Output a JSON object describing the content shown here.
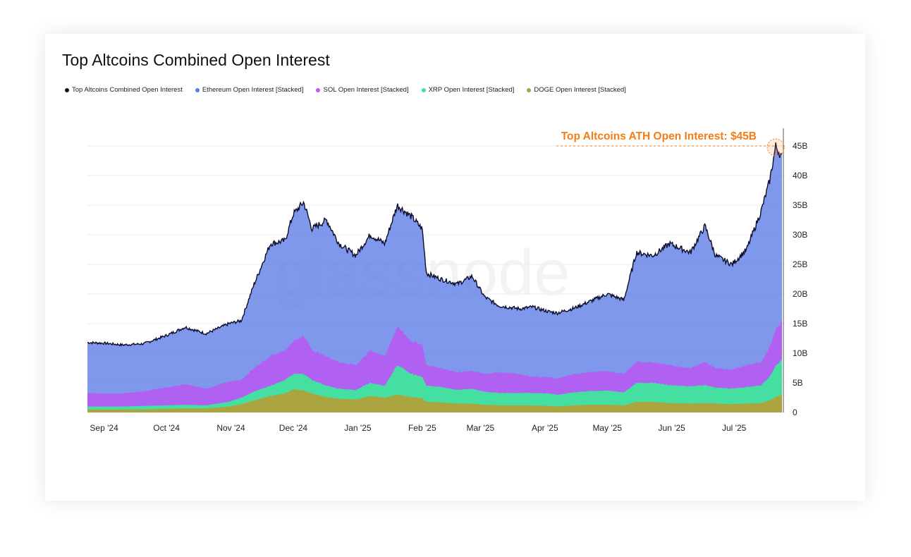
{
  "chart_data": {
    "type": "area",
    "title": "Top Altcoins Combined Open Interest",
    "watermark": "glassnode",
    "x_ticks": [
      "Sep '24",
      "Oct '24",
      "Nov '24",
      "Dec '24",
      "Jan '25",
      "Feb '25",
      "Mar '25",
      "Apr '25",
      "May '25",
      "Jun '25",
      "Jul '25"
    ],
    "y_ticks": [
      "0",
      "5B",
      "10B",
      "15B",
      "20B",
      "25B",
      "30B",
      "35B",
      "40B",
      "45B"
    ],
    "ylim": [
      0,
      45
    ],
    "y_unit": "B",
    "grid": true,
    "legend_position": "top-left",
    "x": [
      "2024-08-24",
      "2024-09-01",
      "2024-09-10",
      "2024-09-20",
      "2024-10-01",
      "2024-10-10",
      "2024-10-20",
      "2024-10-31",
      "2024-11-06",
      "2024-11-12",
      "2024-11-20",
      "2024-11-27",
      "2024-12-01",
      "2024-12-06",
      "2024-12-10",
      "2024-12-17",
      "2024-12-23",
      "2024-12-31",
      "2025-01-07",
      "2025-01-14",
      "2025-01-20",
      "2025-01-27",
      "2025-02-01",
      "2025-02-03",
      "2025-02-10",
      "2025-02-18",
      "2025-02-25",
      "2025-03-03",
      "2025-03-10",
      "2025-03-20",
      "2025-03-26",
      "2025-04-03",
      "2025-04-07",
      "2025-04-15",
      "2025-04-23",
      "2025-05-01",
      "2025-05-09",
      "2025-05-15",
      "2025-05-23",
      "2025-05-31",
      "2025-06-10",
      "2025-06-17",
      "2025-06-22",
      "2025-06-30",
      "2025-07-07",
      "2025-07-14",
      "2025-07-18",
      "2025-07-21",
      "2025-07-24"
    ],
    "series": [
      {
        "name": "Top Altcoins Combined Open Interest",
        "color": "#0b0e2a",
        "values": [
          11.8,
          11.7,
          11.4,
          11.6,
          13.0,
          14.4,
          13.3,
          15.0,
          15.5,
          21.5,
          28.5,
          29.0,
          33.5,
          35.5,
          31.0,
          32.5,
          28.5,
          26.5,
          30.0,
          28.5,
          35.0,
          33.0,
          31.0,
          23.5,
          22.5,
          21.7,
          23.0,
          19.5,
          18.0,
          17.5,
          17.8,
          17.0,
          16.8,
          17.6,
          18.8,
          20.0,
          19.0,
          27.0,
          26.5,
          28.5,
          27.0,
          31.5,
          26.5,
          25.0,
          27.5,
          34.0,
          39.0,
          45.0,
          43.0
        ]
      },
      {
        "name": "Ethereum Open Interest [Stacked]",
        "color": "#5b7be7",
        "values": [
          11.8,
          11.7,
          11.4,
          11.6,
          13.0,
          14.4,
          13.3,
          15.0,
          15.5,
          21.5,
          28.5,
          29.0,
          33.5,
          35.5,
          31.0,
          32.5,
          28.5,
          26.5,
          30.0,
          28.5,
          35.0,
          33.0,
          31.0,
          23.5,
          22.5,
          21.7,
          23.0,
          19.5,
          18.0,
          17.5,
          17.8,
          17.0,
          16.8,
          17.6,
          18.8,
          20.0,
          19.0,
          27.0,
          26.5,
          28.5,
          27.0,
          31.5,
          26.5,
          25.0,
          27.5,
          34.0,
          39.0,
          45.0,
          43.0
        ]
      },
      {
        "name": "SOL Open Interest [Stacked]",
        "color": "#b45ef2",
        "values": [
          3.3,
          3.2,
          3.2,
          3.6,
          4.2,
          4.8,
          4.0,
          5.2,
          5.5,
          7.5,
          9.5,
          10.5,
          12.0,
          13.0,
          10.5,
          9.5,
          8.5,
          8.0,
          10.5,
          9.5,
          14.5,
          12.0,
          11.5,
          8.0,
          7.5,
          6.8,
          7.0,
          6.5,
          6.8,
          6.5,
          6.0,
          6.0,
          5.7,
          6.5,
          6.8,
          7.0,
          6.5,
          8.5,
          8.5,
          8.0,
          7.5,
          8.5,
          7.5,
          7.3,
          8.0,
          8.5,
          11.0,
          14.0,
          15.5
        ]
      },
      {
        "name": "XRP Open Interest [Stacked]",
        "color": "#3ee69c",
        "values": [
          1.0,
          1.0,
          1.0,
          1.1,
          1.2,
          1.3,
          1.2,
          1.8,
          2.5,
          3.5,
          4.5,
          5.5,
          6.5,
          6.5,
          5.5,
          4.5,
          4.0,
          3.8,
          5.0,
          4.5,
          8.0,
          6.5,
          6.0,
          4.5,
          4.3,
          3.8,
          4.0,
          3.5,
          3.3,
          3.3,
          3.3,
          3.2,
          3.0,
          3.4,
          3.6,
          3.7,
          3.4,
          5.0,
          5.0,
          4.6,
          4.4,
          4.6,
          4.2,
          4.0,
          4.3,
          4.6,
          6.0,
          7.8,
          9.0
        ]
      },
      {
        "name": "DOGE Open Interest [Stacked]",
        "color": "#b0a13a",
        "values": [
          0.5,
          0.5,
          0.5,
          0.5,
          0.6,
          0.7,
          0.7,
          1.0,
          1.4,
          2.0,
          2.8,
          3.2,
          3.9,
          3.7,
          3.2,
          2.6,
          2.3,
          2.2,
          2.8,
          2.5,
          3.0,
          2.6,
          2.4,
          1.8,
          1.7,
          1.5,
          1.5,
          1.3,
          1.2,
          1.2,
          1.2,
          1.1,
          1.0,
          1.2,
          1.3,
          1.3,
          1.2,
          1.8,
          1.8,
          1.6,
          1.5,
          1.6,
          1.5,
          1.4,
          1.5,
          1.6,
          2.0,
          2.6,
          3.0
        ]
      }
    ],
    "annotations": [
      {
        "text": "Top Altcoins ATH Open Interest: $45B",
        "x": "2025-07-21",
        "y": 45,
        "color": "#f57c14"
      }
    ]
  }
}
